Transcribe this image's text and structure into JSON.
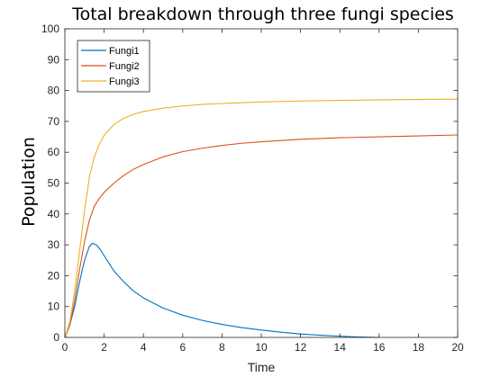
{
  "chart_data": {
    "type": "line",
    "title": "Total breakdown through three fungi species",
    "xlabel": "Time",
    "ylabel": "Population",
    "xlim": [
      0,
      20
    ],
    "ylim": [
      0,
      100
    ],
    "xticks": [
      0,
      2,
      4,
      6,
      8,
      10,
      12,
      14,
      16,
      18,
      20
    ],
    "yticks": [
      0,
      10,
      20,
      30,
      40,
      50,
      60,
      70,
      80,
      90,
      100
    ],
    "grid": false,
    "legend_position": "top-left",
    "series": [
      {
        "name": "Fungi1",
        "color": "#0072BD",
        "x": [
          0,
          0.25,
          0.5,
          0.75,
          1.0,
          1.25,
          1.4,
          1.6,
          1.8,
          2.0,
          2.25,
          2.5,
          3.0,
          3.5,
          4.0,
          5.0,
          6.0,
          7.0,
          8.0,
          9.0,
          10.0,
          11.0,
          12.0,
          13.0,
          14.0,
          15.0,
          16.0
        ],
        "y": [
          0,
          4,
          10,
          18,
          25,
          29.5,
          30.5,
          30,
          28.5,
          26.5,
          24,
          21.5,
          18,
          15,
          12.8,
          9.5,
          7.2,
          5.5,
          4.2,
          3.2,
          2.4,
          1.7,
          1.1,
          0.7,
          0.4,
          0.15,
          0
        ]
      },
      {
        "name": "Fungi2",
        "color": "#D95319",
        "x": [
          0,
          0.25,
          0.5,
          0.75,
          1.0,
          1.25,
          1.5,
          1.75,
          2.0,
          2.5,
          3.0,
          3.5,
          4.0,
          5.0,
          6.0,
          7.0,
          8.0,
          9.0,
          10.0,
          12.0,
          14.0,
          16.0,
          18.0,
          20.0
        ],
        "y": [
          0,
          4,
          12,
          22,
          31,
          38,
          42.5,
          45,
          47,
          50,
          52.5,
          54.5,
          56,
          58.5,
          60.2,
          61.3,
          62.2,
          62.9,
          63.4,
          64.2,
          64.7,
          65.0,
          65.3,
          65.6
        ]
      },
      {
        "name": "Fungi3",
        "color": "#EDB120",
        "x": [
          0,
          0.25,
          0.5,
          0.75,
          1.0,
          1.25,
          1.5,
          1.75,
          2.0,
          2.5,
          3.0,
          3.5,
          4.0,
          5.0,
          6.0,
          7.0,
          8.0,
          10.0,
          12.0,
          14.0,
          16.0,
          18.0,
          20.0
        ],
        "y": [
          0,
          5,
          15,
          28,
          41,
          52,
          58.5,
          62.5,
          65.5,
          69,
          71,
          72.3,
          73.2,
          74.3,
          75.0,
          75.5,
          75.8,
          76.3,
          76.6,
          76.8,
          77.0,
          77.1,
          77.2
        ]
      }
    ]
  }
}
